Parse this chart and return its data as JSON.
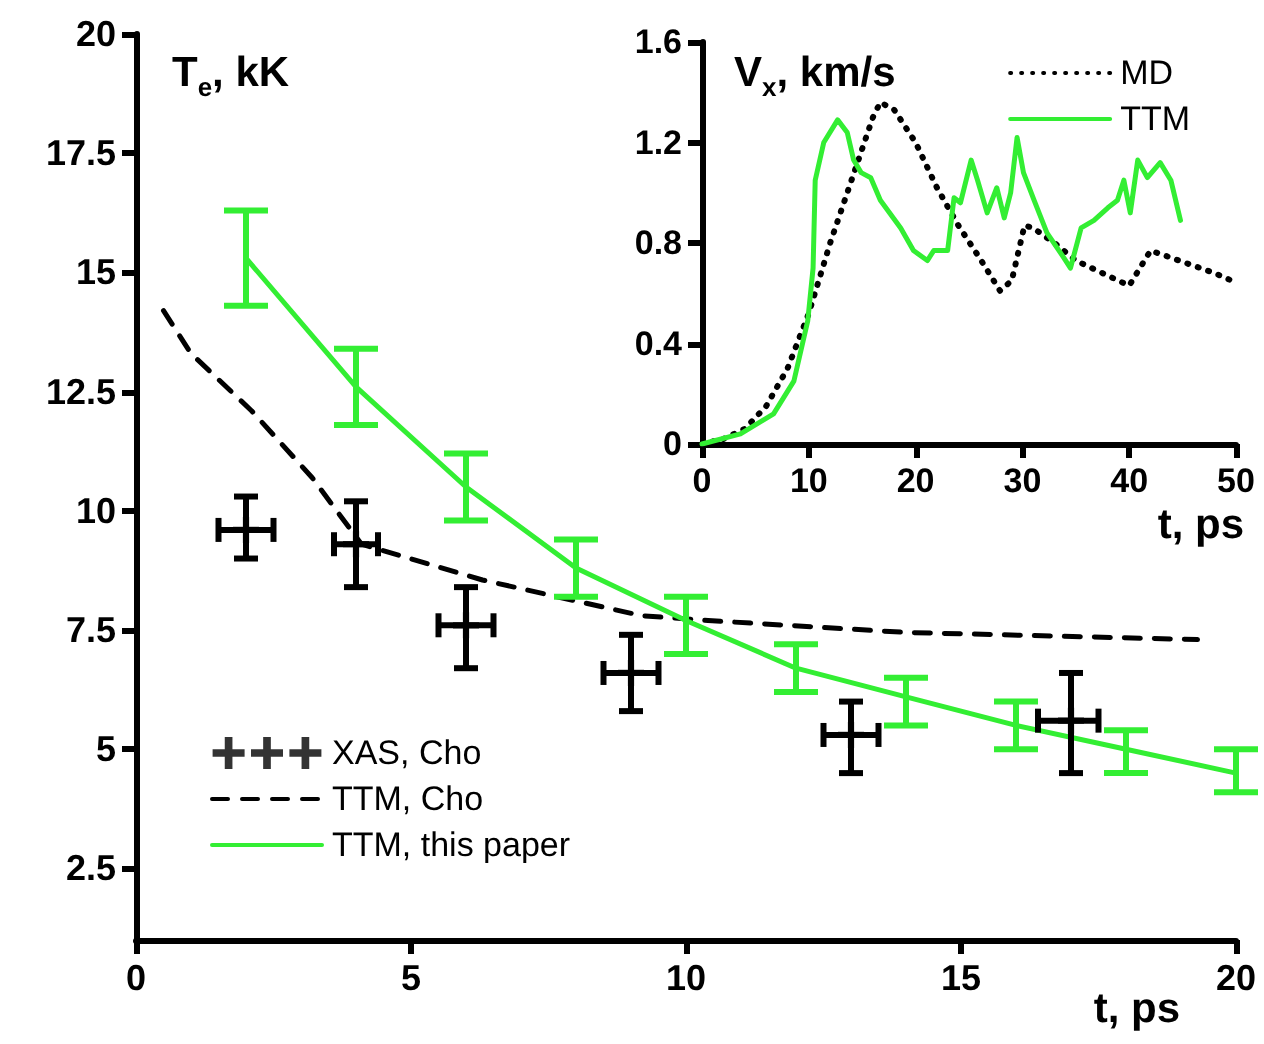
{
  "chart_data": [
    {
      "type": "line",
      "ylabel": "T$_{e}$, kK",
      "xlabel": "t, ps",
      "xlim": [
        0,
        20
      ],
      "xticks": [
        0,
        5,
        10,
        15,
        20
      ],
      "ylim": [
        1,
        20
      ],
      "yticks": [
        2.5,
        5,
        7.5,
        10,
        12.5,
        15,
        17.5,
        20
      ],
      "grid": false,
      "legend": "bottom left",
      "series": [
        {
          "name": "XAS, Cho",
          "type": "scatter",
          "marker": "cross",
          "color": "#000000",
          "x": [
            2,
            4,
            6,
            9,
            13,
            17
          ],
          "values": [
            9.6,
            9.3,
            7.6,
            6.6,
            5.3,
            5.6
          ],
          "errors": [
            [
              9.0,
              10.3
            ],
            [
              8.4,
              10.2
            ],
            [
              6.7,
              8.4
            ],
            [
              5.8,
              7.4
            ],
            [
              4.5,
              6.0
            ],
            [
              4.5,
              6.6
            ]
          ],
          "xerrors": [
            [
              1.5,
              2.5
            ],
            [
              3.6,
              4.4
            ],
            [
              5.5,
              6.5
            ],
            [
              8.5,
              9.5
            ],
            [
              12.5,
              13.5
            ],
            [
              16.4,
              17.5
            ]
          ]
        },
        {
          "name": "TTM, Cho",
          "type": "line",
          "marker": "none",
          "line_style": "dashed",
          "color": "#000000",
          "x": [
            0.5,
            1,
            2.1,
            3.2,
            4.1,
            6.3,
            9.2,
            10.4,
            14,
            19.3
          ],
          "values": [
            14.2,
            13.3,
            12.1,
            10.7,
            9.3,
            8.55,
            7.8,
            7.7,
            7.45,
            7.3
          ]
        },
        {
          "name": "TTM, this paper",
          "type": "line",
          "marker": "none",
          "line_style": "solid",
          "color": "#33ee33",
          "x": [
            2,
            4,
            6,
            8,
            10,
            12,
            14,
            16,
            18,
            20
          ],
          "values": [
            15.3,
            12.6,
            10.5,
            8.8,
            7.7,
            6.7,
            6.1,
            5.5,
            5.0,
            4.5
          ],
          "errors": [
            [
              14.3,
              16.3
            ],
            [
              11.8,
              13.4
            ],
            [
              9.8,
              11.2
            ],
            [
              8.2,
              9.4
            ],
            [
              7.0,
              8.2
            ],
            [
              6.2,
              7.2
            ],
            [
              5.5,
              6.5
            ],
            [
              5.0,
              6.0
            ],
            [
              4.5,
              5.4
            ],
            [
              4.1,
              5.0
            ]
          ]
        }
      ]
    },
    {
      "type": "line",
      "ylabel": "V$_{x}$, km/s",
      "xlabel": "t, ps",
      "xlim": [
        0,
        50
      ],
      "xticks": [
        0,
        10,
        20,
        30,
        40,
        50
      ],
      "ylim": [
        0,
        1.6
      ],
      "yticks": [
        0,
        0.4,
        0.8,
        1.2,
        1.6
      ],
      "grid": false,
      "legend": "top right",
      "marker": "none",
      "series": [
        {
          "name": "MD",
          "line_style": "dotted",
          "color": "#000000",
          "x": [
            0,
            2,
            4,
            6,
            8,
            10,
            12,
            14,
            16,
            16.7,
            18,
            20,
            22,
            24,
            26,
            27.9,
            29,
            30.2,
            31,
            33,
            35,
            37,
            40,
            42,
            44,
            46,
            48,
            49.6
          ],
          "values": [
            0,
            0.02,
            0.06,
            0.15,
            0.3,
            0.52,
            0.8,
            1.05,
            1.3,
            1.36,
            1.33,
            1.2,
            1.02,
            0.87,
            0.74,
            0.61,
            0.65,
            0.87,
            0.86,
            0.8,
            0.73,
            0.69,
            0.63,
            0.77,
            0.74,
            0.71,
            0.68,
            0.65
          ]
        },
        {
          "name": "TTM",
          "line_style": "solid",
          "color": "#33ee33",
          "x": [
            0,
            3.6,
            6.7,
            8.6,
            9.9,
            10.4,
            10.6,
            11.4,
            12.7,
            13.6,
            14.2,
            14.9,
            15.8,
            16.7,
            18.6,
            19.8,
            21.1,
            21.7,
            23.0,
            23.6,
            24.2,
            25.2,
            25.8,
            26.7,
            27.6,
            28.3,
            28.9,
            29.5,
            30.1,
            31.1,
            32.3,
            33.9,
            34.5,
            35.5,
            36.7,
            38.0,
            38.9,
            39.5,
            40.1,
            40.8,
            41.7,
            42.9,
            43.9,
            44.8
          ],
          "values": [
            0,
            0.04,
            0.12,
            0.25,
            0.49,
            0.7,
            1.05,
            1.2,
            1.29,
            1.24,
            1.13,
            1.08,
            1.06,
            0.97,
            0.86,
            0.77,
            0.73,
            0.77,
            0.77,
            0.98,
            0.96,
            1.13,
            1.05,
            0.92,
            1.02,
            0.9,
            1.0,
            1.22,
            1.08,
            0.97,
            0.84,
            0.74,
            0.7,
            0.86,
            0.89,
            0.94,
            0.97,
            1.05,
            0.92,
            1.13,
            1.06,
            1.12,
            1.05,
            0.89
          ]
        }
      ]
    }
  ]
}
